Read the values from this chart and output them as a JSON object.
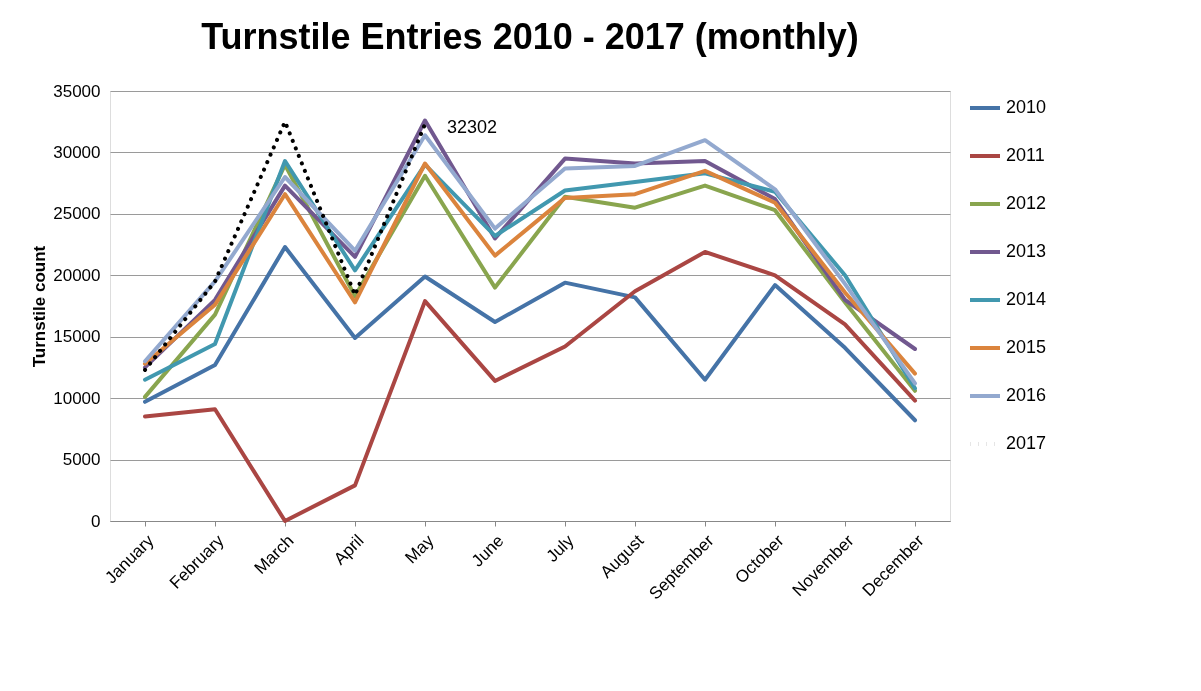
{
  "chart_data": {
    "type": "line",
    "title": "Turnstile Entries 2010 - 2017 (monthly)",
    "ylabel": "Turnstile count",
    "categories": [
      "January",
      "February",
      "March",
      "April",
      "May",
      "June",
      "July",
      "August",
      "September",
      "October",
      "November",
      "December"
    ],
    "series": [
      {
        "name": "2010",
        "color": "#4573a7",
        "line_style": "solid",
        "values": [
          9700,
          12700,
          22300,
          14900,
          19900,
          16200,
          19400,
          18200,
          11500,
          19200,
          14100,
          8200
        ]
      },
      {
        "name": "2011",
        "color": "#aa4643",
        "line_style": "solid",
        "values": [
          8500,
          9100,
          0,
          2900,
          17900,
          11400,
          14200,
          18700,
          21900,
          20000,
          16000,
          9800
        ]
      },
      {
        "name": "2012",
        "color": "#89a54e",
        "line_style": "solid",
        "values": [
          10100,
          16800,
          29000,
          18300,
          28100,
          19000,
          26400,
          25500,
          27300,
          25300,
          17800,
          10600
        ]
      },
      {
        "name": "2013",
        "color": "#71588f",
        "line_style": "solid",
        "values": [
          12500,
          18000,
          27300,
          21500,
          32600,
          23000,
          29500,
          29100,
          29300,
          26200,
          18000,
          14000
        ]
      },
      {
        "name": "2014",
        "color": "#4198af",
        "line_style": "solid",
        "values": [
          11500,
          14400,
          29300,
          20400,
          29000,
          23200,
          26900,
          27600,
          28300,
          26800,
          20000,
          10800
        ]
      },
      {
        "name": "2015",
        "color": "#db843d",
        "line_style": "solid",
        "values": [
          12800,
          17600,
          26600,
          17800,
          29100,
          21600,
          26300,
          26600,
          28500,
          25900,
          18600,
          12000
        ]
      },
      {
        "name": "2016",
        "color": "#93a9cf",
        "line_style": "solid",
        "values": [
          13000,
          19500,
          28000,
          22000,
          31400,
          23800,
          28700,
          28900,
          31000,
          27000,
          19300,
          11200
        ]
      },
      {
        "name": "2017",
        "color": "#000000",
        "line_style": "dotted",
        "values": [
          12300,
          19500,
          32500,
          18400,
          32302,
          null,
          null,
          null,
          null,
          null,
          null,
          null
        ]
      }
    ],
    "annotations": [
      {
        "text": "32302",
        "x": "May",
        "y": 32302
      }
    ],
    "ylim": [
      0,
      35000
    ],
    "yticks": [
      0,
      5000,
      10000,
      15000,
      20000,
      25000,
      30000,
      35000
    ],
    "grid": "y",
    "legend": "right",
    "marker": "none"
  }
}
